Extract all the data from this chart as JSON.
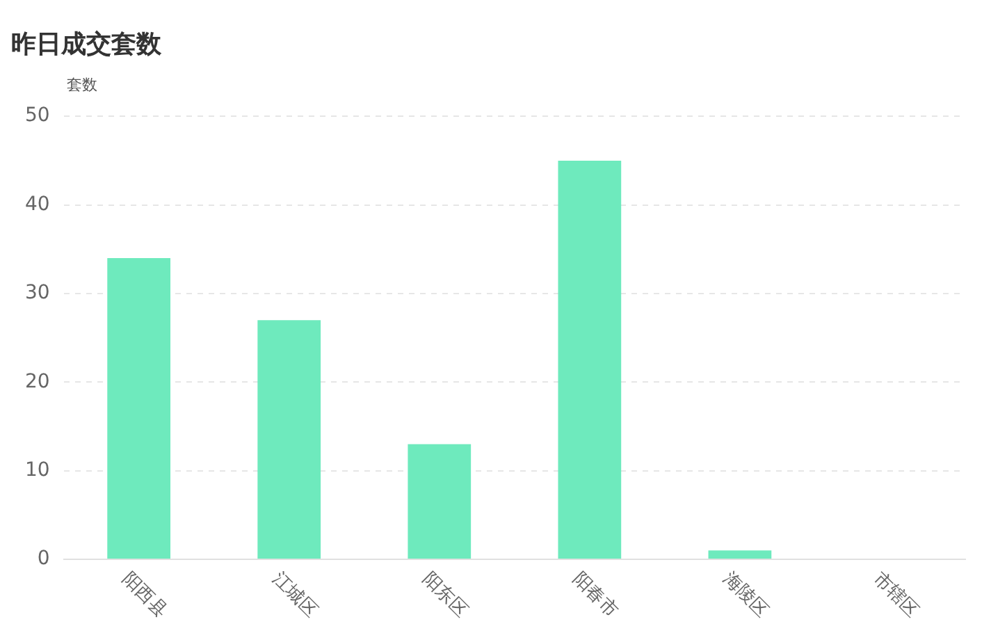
{
  "chart_data": {
    "type": "bar",
    "title": "昨日成交套数",
    "ylabel": "套数",
    "categories": [
      "阳西县",
      "江城区",
      "阳东区",
      "阳春市",
      "海陵区",
      "市辖区"
    ],
    "values": [
      34,
      27,
      13,
      45,
      1,
      0
    ],
    "color": "#6eeabd",
    "ylim": [
      0,
      50
    ],
    "yticks": [
      0,
      10,
      20,
      30,
      40,
      50
    ],
    "grid": "y",
    "legend": false
  }
}
